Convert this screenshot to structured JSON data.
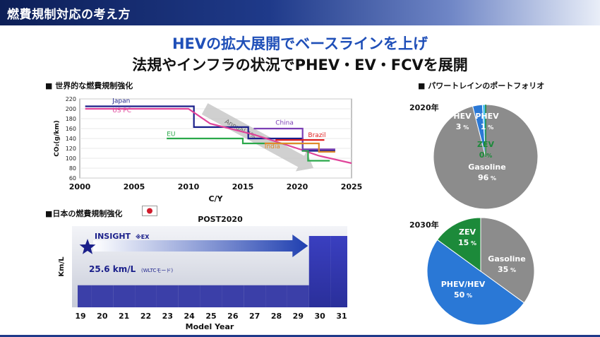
{
  "header": {
    "title": "燃費規制対応の考え方"
  },
  "headline": {
    "line1": "HEVの拡大展開でベースラインを上げ",
    "line2": "法規やインフラの状況でPHEV・EV・FCVを展開"
  },
  "sections": {
    "global": "■ 世界的な燃費規制強化",
    "japan": "■日本の燃費規制強化",
    "portfolio": "■ パワートレインのポートフォリオ"
  },
  "chart_data": [
    {
      "type": "line",
      "title": "",
      "xlabel": "C/Y",
      "ylabel": "CO₂(g/km)",
      "xlim": [
        2000,
        2025
      ],
      "ylim": [
        60,
        220
      ],
      "xticks": [
        2000,
        2005,
        2010,
        2015,
        2020,
        2025
      ],
      "yticks": [
        60,
        80,
        100,
        120,
        140,
        160,
        180,
        200,
        220
      ],
      "annotation": "Annual 4%",
      "series": [
        {
          "name": "Japan",
          "color": "#1a1f8a",
          "step": true,
          "x": [
            2000.5,
            2010.5,
            2010.5,
            2015.5,
            2015.5,
            2020.5,
            2020.5,
            2023.5
          ],
          "y": [
            205,
            205,
            163,
            163,
            140,
            140,
            115,
            115
          ]
        },
        {
          "name": "US PC",
          "color": "#e0449a",
          "step": false,
          "x": [
            2000.5,
            2010,
            2012,
            2016,
            2020,
            2022,
            2025
          ],
          "y": [
            200,
            200,
            170,
            148,
            120,
            105,
            90
          ]
        },
        {
          "name": "EU",
          "color": "#2aa84a",
          "step": true,
          "x": [
            2008,
            2015,
            2015,
            2020.5,
            2020.5,
            2021,
            2021,
            2023
          ],
          "y": [
            140,
            140,
            130,
            130,
            115,
            115,
            95,
            95
          ]
        },
        {
          "name": "China",
          "color": "#7b3fb5",
          "step": true,
          "x": [
            2016,
            2020.5,
            2020.5,
            2023.5
          ],
          "y": [
            160,
            160,
            118,
            118
          ]
        },
        {
          "name": "Brazil",
          "color": "#e02020",
          "step": true,
          "x": [
            2018,
            2022.5
          ],
          "y": [
            137,
            137
          ]
        },
        {
          "name": "India",
          "color": "#e08a2a",
          "step": true,
          "x": [
            2017,
            2022,
            2022,
            2023.5
          ],
          "y": [
            130,
            130,
            113,
            113
          ]
        }
      ]
    },
    {
      "type": "area",
      "title": "POST2020",
      "xlabel": "Model Year",
      "ylabel": "Km/L",
      "categories": [
        "19",
        "20",
        "21",
        "22",
        "23",
        "24",
        "25",
        "26",
        "27",
        "28",
        "29",
        "30",
        "31"
      ],
      "series": [
        {
          "name": "",
          "values": [
            1,
            1,
            1,
            1,
            1,
            1,
            1,
            1,
            1,
            1,
            1,
            4,
            4
          ]
        }
      ],
      "annotation": {
        "car": "INSIGHT",
        "note": "※EX",
        "value": "25.6 km/L",
        "mode": "(WLTCモード)"
      }
    },
    {
      "type": "pie",
      "title": "2020年",
      "slices": [
        {
          "label": "Gasoline",
          "value": 96,
          "pct": "96",
          "color": "#8c8c8c"
        },
        {
          "label": "HEV",
          "value": 3,
          "pct": "3",
          "color": "#2a78d6"
        },
        {
          "label": "PHEV",
          "value": 1,
          "pct": "1",
          "color": "#4fc0f0"
        },
        {
          "label": "ZEV",
          "value": 0,
          "pct": "0",
          "color": "#1c8a3a"
        }
      ]
    },
    {
      "type": "pie",
      "title": "2030年",
      "slices": [
        {
          "label": "Gasoline",
          "value": 35,
          "pct": "35",
          "color": "#8c8c8c"
        },
        {
          "label": "PHEV/HEV",
          "value": 50,
          "pct": "50",
          "color": "#2a78d6"
        },
        {
          "label": "ZEV",
          "value": 15,
          "pct": "15",
          "color": "#1c8a3a"
        }
      ]
    }
  ]
}
